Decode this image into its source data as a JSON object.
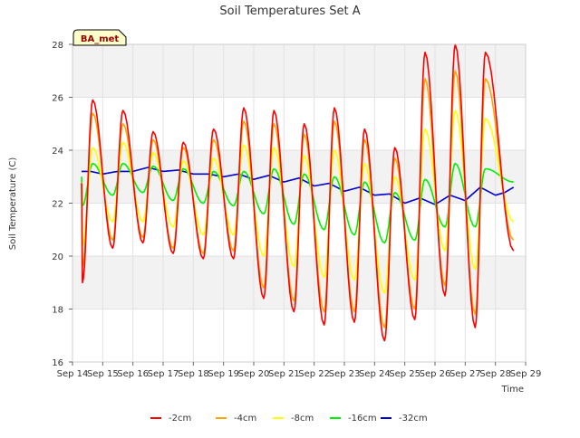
{
  "chart_data": {
    "type": "line",
    "title": "Soil Temperatures Set A",
    "xlabel": "Time",
    "ylabel": "Soil Temperature (C)",
    "badge": "BA_met",
    "xlim": [
      0,
      15
    ],
    "ylim": [
      16,
      28
    ],
    "x_ticks": [
      0,
      1,
      2,
      3,
      4,
      5,
      6,
      7,
      8,
      9,
      10,
      11,
      12,
      13,
      14,
      15
    ],
    "x_tick_labels": [
      "Sep 14",
      "Sep 15",
      "Sep 16",
      "Sep 17",
      "Sep 18",
      "Sep 19",
      "Sep 20",
      "Sep 21",
      "Sep 22",
      "Sep 23",
      "Sep 24",
      "Sep 25",
      "Sep 26",
      "Sep 27",
      "Sep 28",
      "Sep 29"
    ],
    "y_ticks": [
      16,
      18,
      20,
      22,
      24,
      26,
      28
    ],
    "y_tick_labels": [
      "16",
      "18",
      "20",
      "22",
      "24",
      "26",
      "28"
    ],
    "grid": "horizontal bands",
    "legend_position": "bottom",
    "x_day_start": 0.3,
    "x_day_end": 14.6,
    "series": [
      {
        "name": "-2cm",
        "color": "#ff0000",
        "day_peaks": [
          25.9,
          25.5,
          24.7,
          24.3,
          24.8,
          25.6,
          25.5,
          25.0,
          25.6,
          24.8,
          24.1,
          27.7,
          28.0,
          27.7
        ],
        "day_mins": [
          19.0,
          20.3,
          20.5,
          20.1,
          19.9,
          19.9,
          18.4,
          17.9,
          17.4,
          17.5,
          16.8,
          17.6,
          18.5,
          17.3
        ],
        "end_value": 20.2
      },
      {
        "name": "-4cm",
        "color": "#ffa500",
        "day_peaks": [
          25.4,
          25.0,
          24.4,
          24.1,
          24.4,
          25.1,
          25.0,
          24.6,
          25.1,
          24.4,
          23.7,
          26.7,
          27.0,
          26.7
        ],
        "day_mins": [
          19.6,
          20.6,
          20.7,
          20.3,
          20.1,
          20.2,
          18.8,
          18.3,
          17.9,
          17.9,
          17.3,
          18.0,
          18.9,
          17.8
        ],
        "end_value": 20.6
      },
      {
        "name": "-8cm",
        "color": "#ffff00",
        "day_peaks": [
          24.1,
          24.3,
          23.9,
          23.6,
          23.7,
          24.2,
          24.1,
          23.8,
          24.0,
          23.5,
          23.0,
          24.8,
          25.5,
          25.2
        ],
        "day_mins": [
          20.4,
          21.3,
          21.3,
          21.1,
          20.8,
          20.8,
          20.0,
          19.6,
          19.2,
          19.1,
          18.6,
          19.1,
          20.2,
          19.5
        ],
        "end_value": 21.3
      },
      {
        "name": "-16cm",
        "color": "#00ee00",
        "day_peaks": [
          23.5,
          23.5,
          23.4,
          23.3,
          23.2,
          23.2,
          23.3,
          23.1,
          23.0,
          22.8,
          22.4,
          22.9,
          23.5,
          23.3
        ],
        "day_mins": [
          21.9,
          22.3,
          22.4,
          22.1,
          22.0,
          21.9,
          21.6,
          21.2,
          21.0,
          20.8,
          20.5,
          20.6,
          21.1,
          21.1
        ],
        "end_value": 22.8
      },
      {
        "name": "-32cm",
        "color": "#0000cc",
        "points": [
          [
            0.3,
            23.2
          ],
          [
            0.6,
            23.2
          ],
          [
            1.0,
            23.1
          ],
          [
            1.5,
            23.2
          ],
          [
            2.0,
            23.2
          ],
          [
            2.5,
            23.35
          ],
          [
            3.0,
            23.2
          ],
          [
            3.5,
            23.25
          ],
          [
            4.0,
            23.1
          ],
          [
            4.5,
            23.1
          ],
          [
            5.0,
            23.0
          ],
          [
            5.5,
            23.1
          ],
          [
            6.0,
            22.9
          ],
          [
            6.5,
            23.05
          ],
          [
            7.0,
            22.8
          ],
          [
            7.5,
            22.95
          ],
          [
            8.0,
            22.65
          ],
          [
            8.5,
            22.75
          ],
          [
            9.0,
            22.45
          ],
          [
            9.5,
            22.6
          ],
          [
            10.0,
            22.3
          ],
          [
            10.5,
            22.35
          ],
          [
            11.0,
            22.0
          ],
          [
            11.5,
            22.2
          ],
          [
            12.0,
            21.95
          ],
          [
            12.5,
            22.3
          ],
          [
            13.0,
            22.1
          ],
          [
            13.5,
            22.6
          ],
          [
            14.0,
            22.3
          ],
          [
            14.3,
            22.4
          ],
          [
            14.6,
            22.6
          ]
        ]
      }
    ]
  }
}
